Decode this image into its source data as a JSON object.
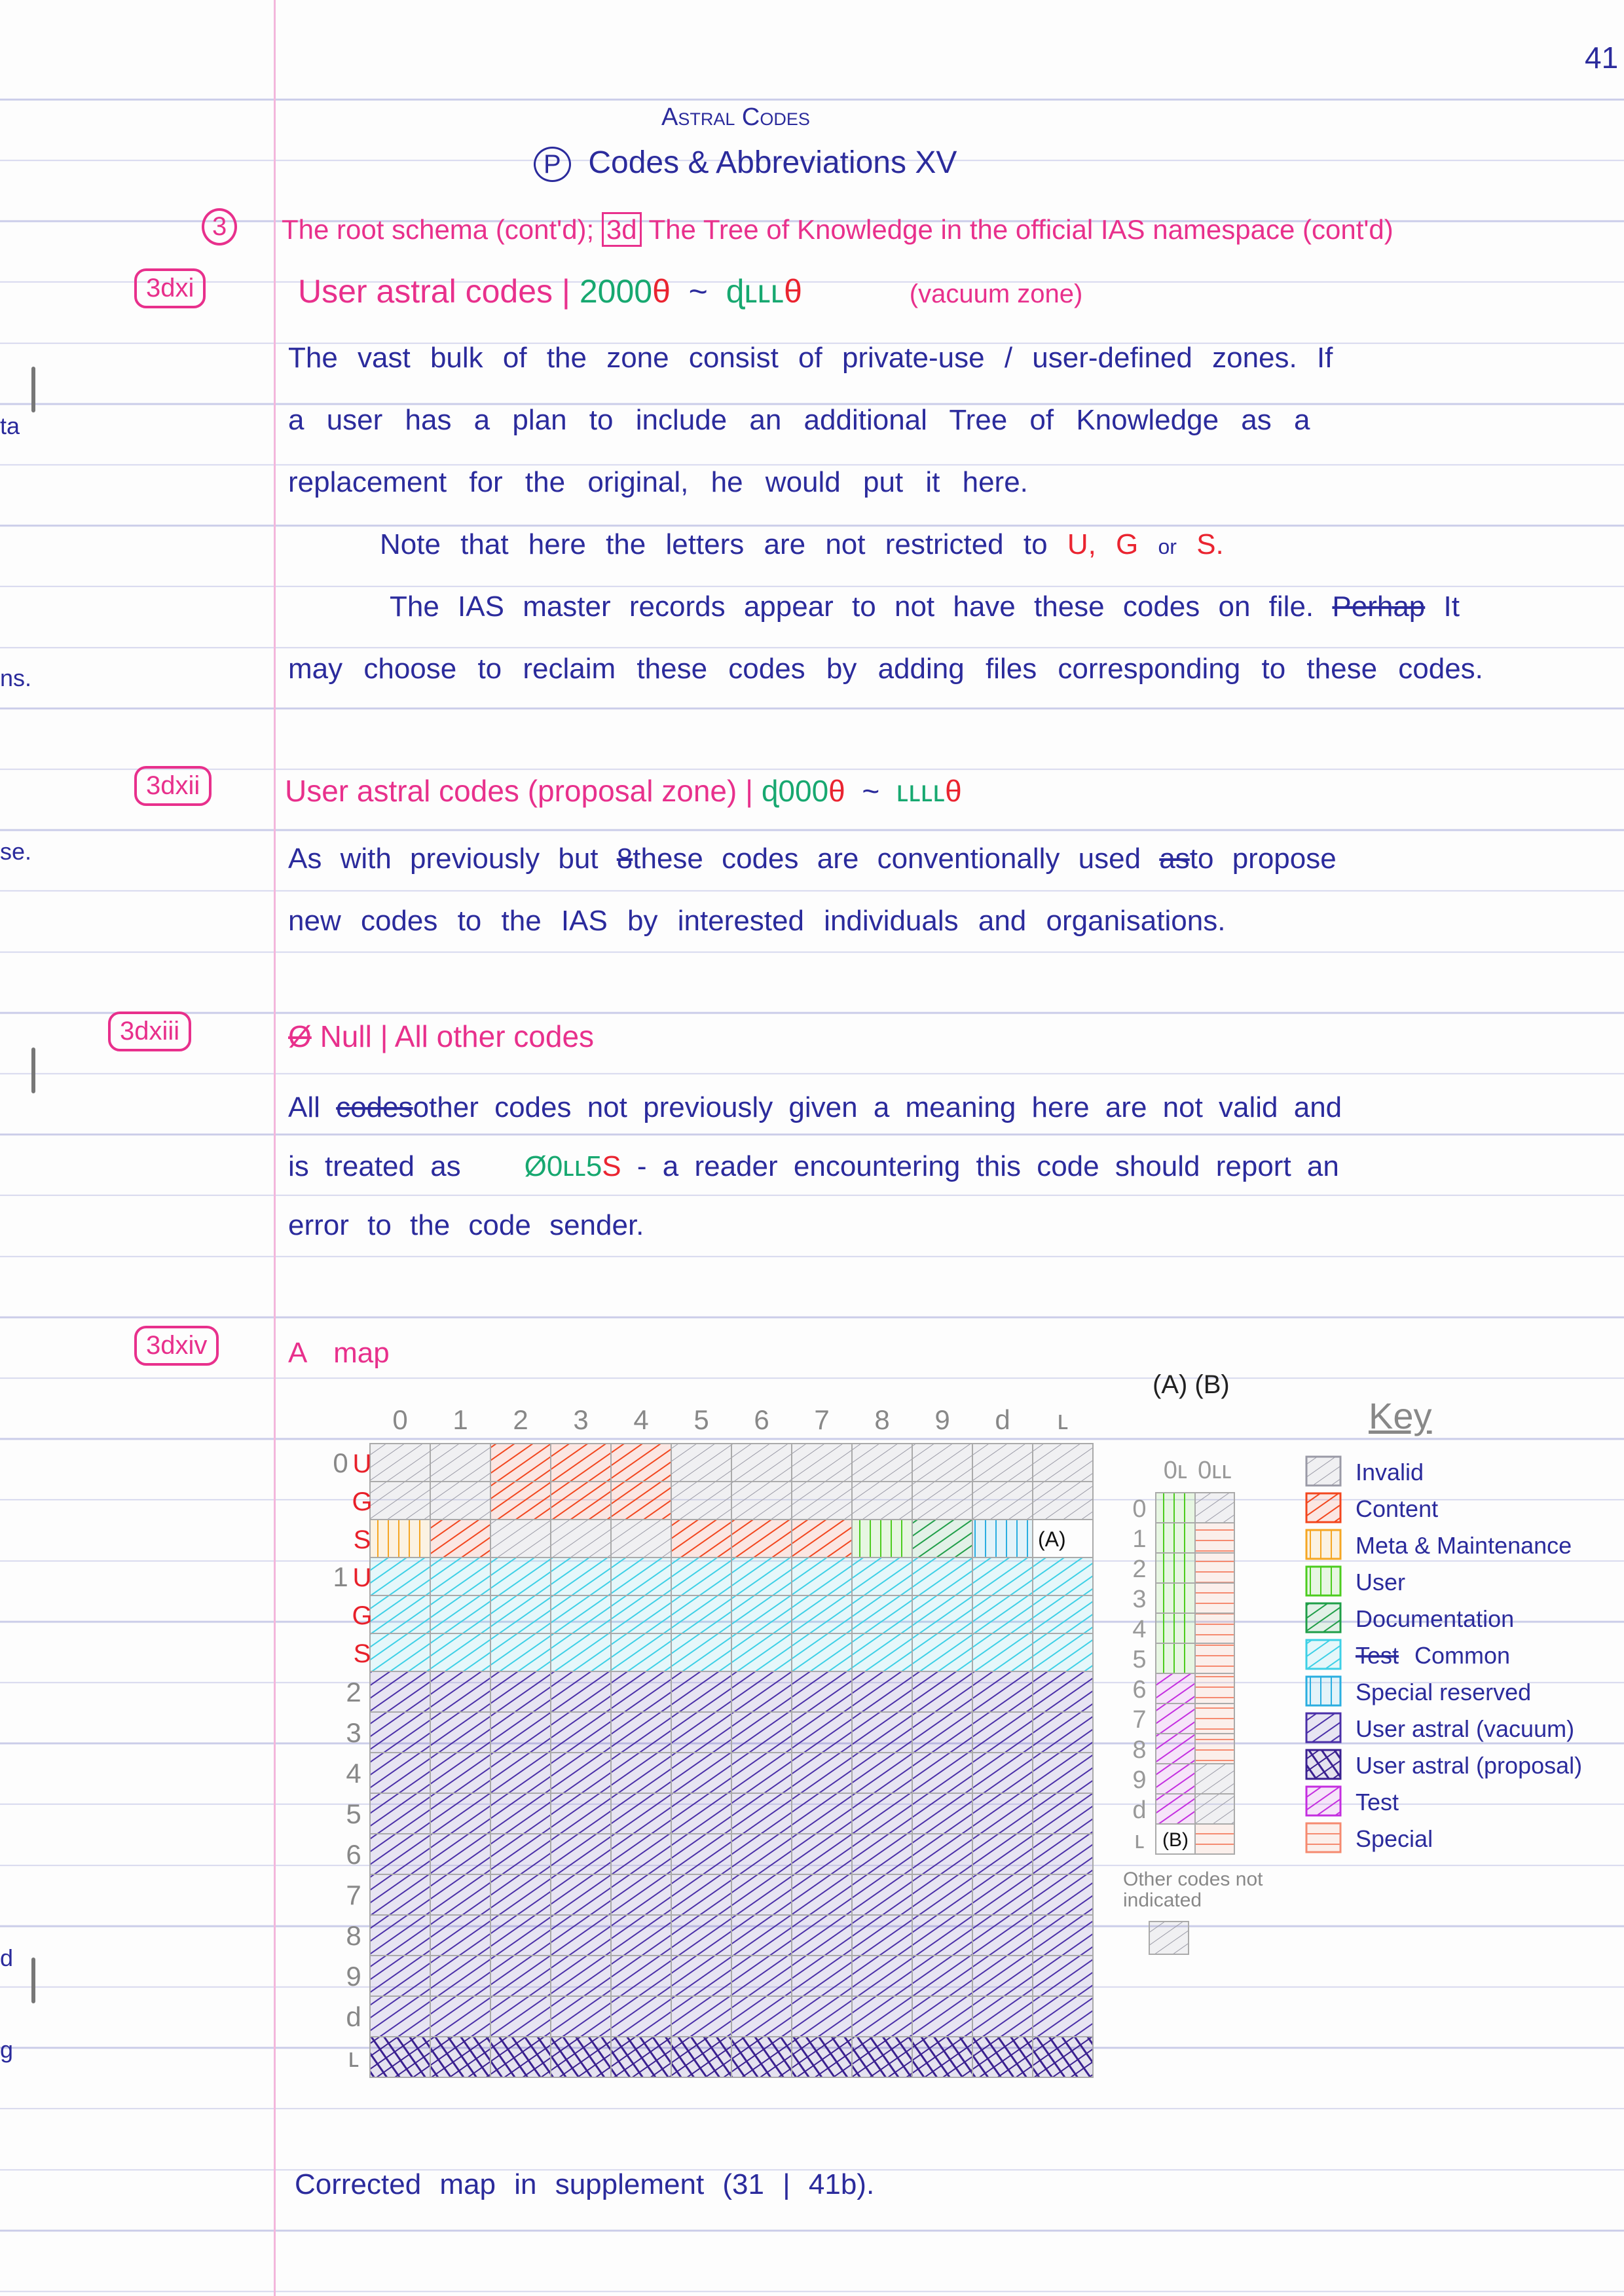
{
  "page_number": "41",
  "header": {
    "title": "Astral Codes",
    "section_mark": "P",
    "subtitle": "Codes & Abbreviations XV"
  },
  "section3": {
    "marker": "3",
    "heading_a": "The root schema (cont'd);",
    "heading_box": "3d",
    "heading_b": "The Tree of Knowledge in the official IAS namespace (cont'd)"
  },
  "s3dxi": {
    "label": "3dxi",
    "title": "User astral codes |",
    "range_start": "2000",
    "range_start_suffix": "θ",
    "tilde": "~",
    "range_end": "ɖʟʟʟ",
    "range_end_suffix": "θ",
    "zone": "(vacuum zone)",
    "lines": [
      "The vast bulk of the zone consist of private-use / user-defined zones. If",
      "a user has a plan to include an additional Tree of Knowledge as a",
      "replacement for the original, he would put it here."
    ],
    "note_prefix": "Note that here the letters are not restricted to",
    "note_letters": "U, G",
    "note_or": "or",
    "note_s": "S.",
    "para2_a": "The IAS master records appear to not have these codes on file.",
    "para2_struck": "Perhap",
    "para2_b": "It",
    "para2_line2": "may choose to reclaim these codes by adding files corresponding to these codes."
  },
  "s3dxii": {
    "label": "3dxii",
    "title": "User astral codes (proposal zone) |",
    "range_start": "ɖ000",
    "range_start_suffix": "θ",
    "tilde": "~",
    "range_end": "ʟʟʟʟ",
    "range_end_suffix": "θ",
    "line1_a": "As with previously but",
    "line1_struck": "8",
    "line1_b": "these codes are conventionally used",
    "line1_struck2": "as",
    "line1_c": "to propose",
    "line2": "new codes to the IAS by interested individuals and organisations."
  },
  "s3dxiii": {
    "label": "3dxiii",
    "title_struck": "Ø",
    "title": "Null | All other codes",
    "line1_a": "All",
    "line1_struck": "codes",
    "line1_b": "other codes not previously given a meaning here are not valid and",
    "line2_a": "is treated as",
    "code_green": "Ø0ʟʟ5",
    "code_red": "S",
    "line2_b": "- a reader encountering this code should report an",
    "line3": "error to the code sender."
  },
  "s3dxiv": {
    "label": "3dxiv",
    "title": "A map",
    "footer": "Corrected map in supplement (31 | 41b)."
  },
  "map": {
    "columns": [
      "0",
      "1",
      "2",
      "3",
      "4",
      "5",
      "6",
      "7",
      "8",
      "9",
      "d",
      "ʟ"
    ],
    "subrow_letters": [
      "U",
      "G",
      "S"
    ],
    "rows": [
      {
        "label": "0",
        "sub": "U",
        "cells": [
          "invalid",
          "invalid",
          "content",
          "content",
          "content",
          "invalid",
          "invalid",
          "invalid",
          "invalid",
          "invalid",
          "invalid",
          "invalid"
        ]
      },
      {
        "label": "",
        "sub": "G",
        "cells": [
          "invalid",
          "invalid",
          "content",
          "content",
          "content",
          "invalid",
          "invalid",
          "invalid",
          "invalid",
          "invalid",
          "invalid",
          "invalid"
        ]
      },
      {
        "label": "",
        "sub": "S",
        "cells": [
          "meta",
          "content",
          "invalid",
          "invalid",
          "invalid",
          "content",
          "content",
          "content",
          "user",
          "documentation",
          "special_reserved",
          ""
        ],
        "note": "(A)"
      },
      {
        "label": "1",
        "sub": "U",
        "cells": [
          "common",
          "common",
          "common",
          "common",
          "common",
          "common",
          "common",
          "common",
          "common",
          "common",
          "common",
          "common"
        ]
      },
      {
        "label": "",
        "sub": "G",
        "cells": [
          "common",
          "common",
          "common",
          "common",
          "common",
          "common",
          "common",
          "common",
          "common",
          "common",
          "common",
          "common"
        ]
      },
      {
        "label": "",
        "sub": "S",
        "cells": [
          "common",
          "common",
          "common",
          "common",
          "common",
          "common",
          "common",
          "common",
          "common",
          "common",
          "common",
          "common"
        ]
      },
      {
        "label": "2",
        "sub": "",
        "cells": [
          "vacuum",
          "vacuum",
          "vacuum",
          "vacuum",
          "vacuum",
          "vacuum",
          "vacuum",
          "vacuum",
          "vacuum",
          "vacuum",
          "vacuum",
          "vacuum"
        ]
      },
      {
        "label": "3",
        "sub": "",
        "cells": [
          "vacuum",
          "vacuum",
          "vacuum",
          "vacuum",
          "vacuum",
          "vacuum",
          "vacuum",
          "vacuum",
          "vacuum",
          "vacuum",
          "vacuum",
          "vacuum"
        ]
      },
      {
        "label": "4",
        "sub": "",
        "cells": [
          "vacuum",
          "vacuum",
          "vacuum",
          "vacuum",
          "vacuum",
          "vacuum",
          "vacuum",
          "vacuum",
          "vacuum",
          "vacuum",
          "vacuum",
          "vacuum"
        ]
      },
      {
        "label": "5",
        "sub": "",
        "cells": [
          "vacuum",
          "vacuum",
          "vacuum",
          "vacuum",
          "vacuum",
          "vacuum",
          "vacuum",
          "vacuum",
          "vacuum",
          "vacuum",
          "vacuum",
          "vacuum"
        ]
      },
      {
        "label": "6",
        "sub": "",
        "cells": [
          "vacuum",
          "vacuum",
          "vacuum",
          "vacuum",
          "vacuum",
          "vacuum",
          "vacuum",
          "vacuum",
          "vacuum",
          "vacuum",
          "vacuum",
          "vacuum"
        ]
      },
      {
        "label": "7",
        "sub": "",
        "cells": [
          "vacuum",
          "vacuum",
          "vacuum",
          "vacuum",
          "vacuum",
          "vacuum",
          "vacuum",
          "vacuum",
          "vacuum",
          "vacuum",
          "vacuum",
          "vacuum"
        ]
      },
      {
        "label": "8",
        "sub": "",
        "cells": [
          "vacuum",
          "vacuum",
          "vacuum",
          "vacuum",
          "vacuum",
          "vacuum",
          "vacuum",
          "vacuum",
          "vacuum",
          "vacuum",
          "vacuum",
          "vacuum"
        ]
      },
      {
        "label": "9",
        "sub": "",
        "cells": [
          "vacuum",
          "vacuum",
          "vacuum",
          "vacuum",
          "vacuum",
          "vacuum",
          "vacuum",
          "vacuum",
          "vacuum",
          "vacuum",
          "vacuum",
          "vacuum"
        ]
      },
      {
        "label": "d",
        "sub": "",
        "cells": [
          "vacuum",
          "vacuum",
          "vacuum",
          "vacuum",
          "vacuum",
          "vacuum",
          "vacuum",
          "vacuum",
          "vacuum",
          "vacuum",
          "vacuum",
          "vacuum"
        ]
      },
      {
        "label": "ʟ",
        "sub": "",
        "cells": [
          "proposal",
          "proposal",
          "proposal",
          "proposal",
          "proposal",
          "proposal",
          "proposal",
          "proposal",
          "proposal",
          "proposal",
          "proposal",
          "proposal"
        ]
      }
    ]
  },
  "side_map": {
    "heading": "(A) (B)",
    "column_labels": [
      "0ʟ",
      "0ʟʟ"
    ],
    "row_labels": [
      "0",
      "1",
      "2",
      "3",
      "4",
      "5",
      "6",
      "7",
      "8",
      "9",
      "d",
      "ʟ"
    ],
    "A": [
      "user",
      "user",
      "user",
      "user",
      "user",
      "user",
      "test",
      "test",
      "test",
      "test",
      "test",
      ""
    ],
    "A_note": "(B)",
    "B": [
      "invalid",
      "special",
      "special",
      "special",
      "special",
      "special",
      "special",
      "special",
      "special",
      "invalid",
      "invalid",
      "special"
    ],
    "other_label": "Other codes not indicated",
    "other_category": "invalid"
  },
  "legend": {
    "title": "Key",
    "items": [
      {
        "key": "invalid",
        "label": "Invalid",
        "color": "#9a9aa6"
      },
      {
        "key": "content",
        "label": "Content",
        "color": "#f2461e"
      },
      {
        "key": "meta",
        "label": "Meta & Maintenance",
        "color": "#f5a623"
      },
      {
        "key": "user",
        "label": "User",
        "color": "#4ccc1e"
      },
      {
        "key": "documentation",
        "label": "Documentation",
        "color": "#1f9e48"
      },
      {
        "key": "common",
        "label": "Common",
        "struck": "Test",
        "color": "#3dd0e6"
      },
      {
        "key": "special_reserved",
        "label": "Special reserved",
        "color": "#2aaee0"
      },
      {
        "key": "vacuum",
        "label": "User astral (vacuum)",
        "color": "#4a2fa8"
      },
      {
        "key": "proposal",
        "label": "User astral (proposal)",
        "color": "#3a2090"
      },
      {
        "key": "test",
        "label": "Test",
        "color": "#c42ee0"
      },
      {
        "key": "special",
        "label": "Special",
        "color": "#f58a70"
      }
    ]
  },
  "margin_bleed": [
    "ta",
    "ns.",
    "se.",
    "d",
    "g"
  ]
}
